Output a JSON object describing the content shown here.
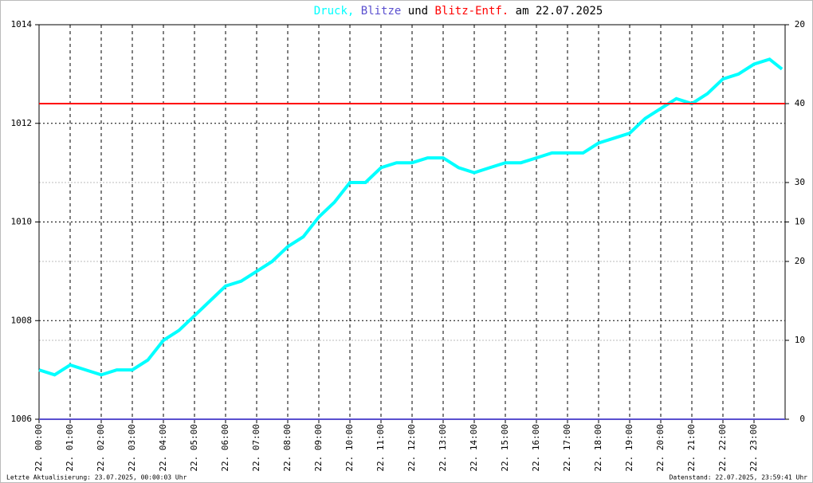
{
  "chart_data": {
    "type": "line",
    "title_separator": ",",
    "title_and": "und",
    "title_date": "am 22.07.2025",
    "xlim": [
      0,
      24
    ],
    "xticks": [
      {
        "value": 0,
        "label": "22. 00:00"
      },
      {
        "value": 1,
        "label": "22. 01:00"
      },
      {
        "value": 2,
        "label": "22. 02:00"
      },
      {
        "value": 3,
        "label": "22. 03:00"
      },
      {
        "value": 4,
        "label": "22. 04:00"
      },
      {
        "value": 5,
        "label": "22. 05:00"
      },
      {
        "value": 6,
        "label": "22. 06:00"
      },
      {
        "value": 7,
        "label": "22. 07:00"
      },
      {
        "value": 8,
        "label": "22. 08:00"
      },
      {
        "value": 9,
        "label": "22. 09:00"
      },
      {
        "value": 10,
        "label": "22. 10:00"
      },
      {
        "value": 11,
        "label": "22. 11:00"
      },
      {
        "value": 12,
        "label": "22. 12:00"
      },
      {
        "value": 13,
        "label": "22. 13:00"
      },
      {
        "value": 14,
        "label": "22. 14:00"
      },
      {
        "value": 15,
        "label": "22. 15:00"
      },
      {
        "value": 16,
        "label": "22. 16:00"
      },
      {
        "value": 17,
        "label": "22. 17:00"
      },
      {
        "value": 18,
        "label": "22. 18:00"
      },
      {
        "value": 19,
        "label": "22. 19:00"
      },
      {
        "value": 20,
        "label": "22. 20:00"
      },
      {
        "value": 21,
        "label": "22. 21:00"
      },
      {
        "value": 22,
        "label": "22. 22:00"
      },
      {
        "value": 23,
        "label": "22. 23:00"
      }
    ],
    "ylim": [
      1006,
      1014
    ],
    "yticks": [
      1006,
      1008,
      1010,
      1012,
      1014
    ],
    "y2lim": [
      0,
      20
    ],
    "y2ticks": [
      0,
      10,
      20
    ],
    "y3lim": [
      0,
      50
    ],
    "y3ticks": [
      10,
      20,
      30,
      40
    ],
    "grid": true,
    "series": [
      {
        "name": "Druck",
        "color": "#00ffff",
        "x": [
          0,
          0.5,
          1,
          1.5,
          2,
          2.5,
          3,
          3.5,
          4,
          4.5,
          5,
          5.5,
          6,
          6.5,
          7,
          7.5,
          8,
          8.5,
          9,
          9.5,
          10,
          10.5,
          11,
          11.5,
          12,
          12.5,
          13,
          13.5,
          14,
          14.5,
          15,
          15.5,
          16,
          16.5,
          17,
          17.5,
          18,
          18.5,
          19,
          19.5,
          20,
          20.5,
          21,
          21.5,
          22,
          22.5,
          23,
          23.5,
          23.9
        ],
        "values": [
          1007.0,
          1006.9,
          1007.1,
          1007.0,
          1006.9,
          1007.0,
          1007.0,
          1007.2,
          1007.6,
          1007.8,
          1008.1,
          1008.4,
          1008.7,
          1008.8,
          1009.0,
          1009.2,
          1009.5,
          1009.7,
          1010.1,
          1010.4,
          1010.8,
          1010.8,
          1011.1,
          1011.2,
          1011.2,
          1011.3,
          1011.3,
          1011.1,
          1011.0,
          1011.1,
          1011.2,
          1011.2,
          1011.3,
          1011.4,
          1011.4,
          1011.4,
          1011.6,
          1011.7,
          1011.8,
          1012.1,
          1012.3,
          1012.5,
          1012.4,
          1012.6,
          1012.9,
          1013.0,
          1013.2,
          1013.3,
          1013.1
        ]
      },
      {
        "name": "Blitze",
        "color": "#5a4fcf",
        "axis": "y2",
        "x": [
          0,
          24
        ],
        "values": [
          0,
          0
        ]
      },
      {
        "name": "Blitz-Entf.",
        "color": "#ff0000",
        "axis": "y3",
        "x": [
          0,
          24
        ],
        "values": [
          40,
          40
        ]
      }
    ],
    "footer_left": "Letzte Aktualisierung: 23.07.2025, 00:00:03 Uhr",
    "footer_right": "Datenstand: 22.07.2025, 23:59:41 Uhr"
  }
}
